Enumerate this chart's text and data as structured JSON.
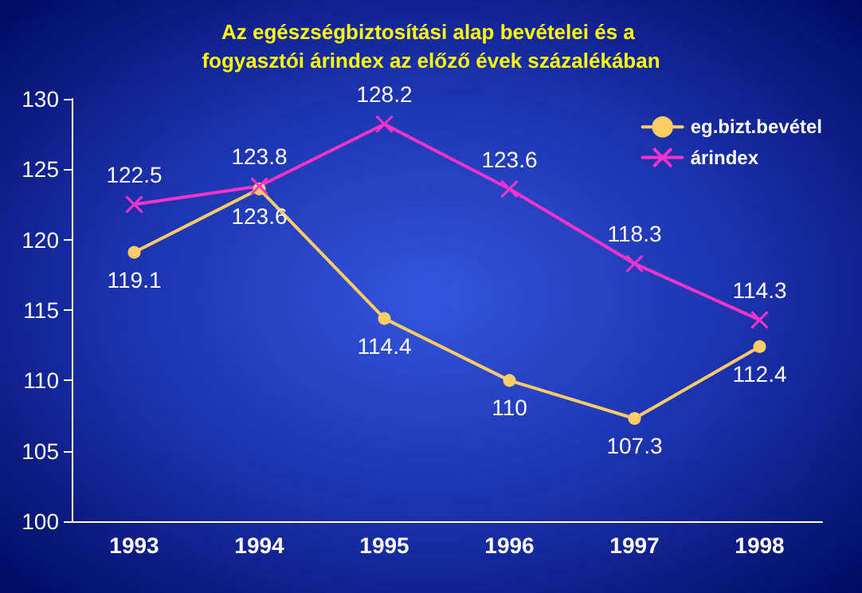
{
  "chart_data": {
    "type": "line",
    "title": "Az egészségbiztosítási alap bevételei és a fogyasztói árindex az előző évek százalékában",
    "categories": [
      "1993",
      "1994",
      "1995",
      "1996",
      "1997",
      "1998"
    ],
    "series": [
      {
        "name": "eg.bizt.bevétel",
        "color": "#ffcc66",
        "marker": "circle",
        "values": [
          119.1,
          123.6,
          114.4,
          110,
          107.3,
          112.4
        ]
      },
      {
        "name": "árindex",
        "color": "#ff33cc",
        "marker": "cross",
        "values": [
          122.5,
          123.8,
          128.2,
          123.6,
          118.3,
          114.3
        ]
      }
    ],
    "ylim": [
      100,
      130
    ],
    "yticks": [
      100,
      105,
      110,
      115,
      120,
      125,
      130
    ],
    "data_labels": true,
    "legend": "top right",
    "grid": false
  }
}
